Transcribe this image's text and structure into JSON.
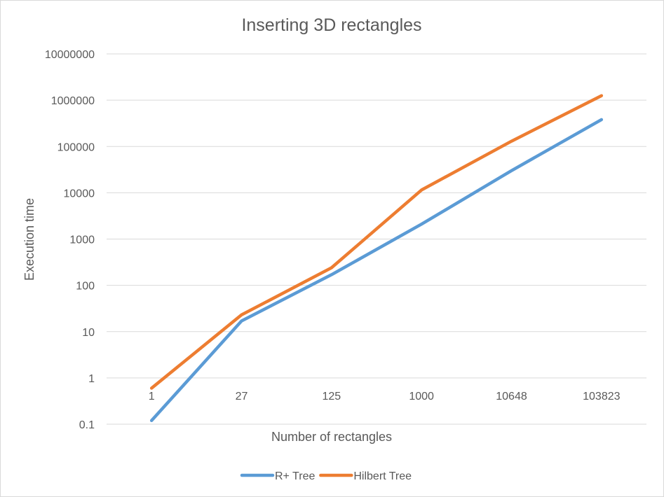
{
  "chart_data": {
    "type": "line",
    "title": "Inserting 3D rectangles",
    "xlabel": "Number of rectangles",
    "ylabel": "Execution time",
    "y_scale": "log",
    "ylim": [
      0.1,
      10000000
    ],
    "y_ticks": [
      "10000000",
      "1000000",
      "100000",
      "10000",
      "1000",
      "100",
      "10",
      "1",
      "0.1"
    ],
    "categories": [
      "1",
      "27",
      "125",
      "1000",
      "10648",
      "103823"
    ],
    "series": [
      {
        "name": "R+ Tree",
        "color": "#5b9bd5",
        "values": [
          0.12,
          17,
          170,
          2100,
          30000,
          380000
        ]
      },
      {
        "name": "Hilbert Tree",
        "color": "#ed7d31",
        "values": [
          0.6,
          23,
          240,
          11500,
          130000,
          1250000
        ]
      }
    ],
    "grid": true,
    "legend_position": "bottom"
  }
}
